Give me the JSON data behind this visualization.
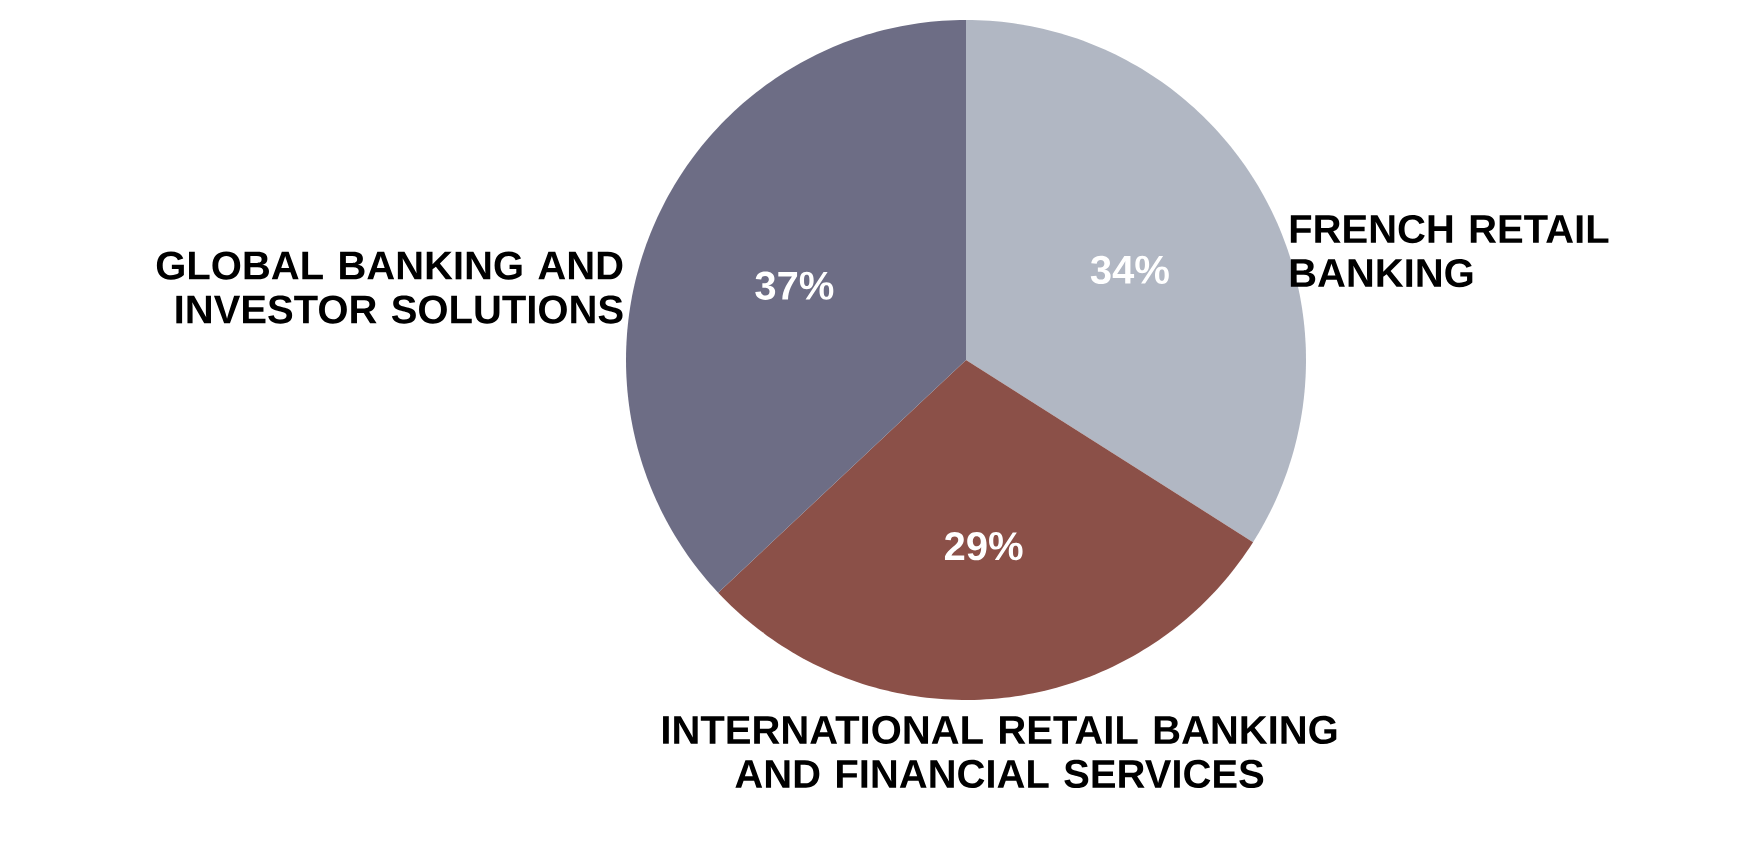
{
  "chart_data": {
    "type": "pie",
    "categories": [
      "FRENCH RETAIL BANKING",
      "INTERNATIONAL RETAIL BANKING AND FINANCIAL SERVICES",
      "GLOBAL BANKING AND INVESTOR SOLUTIONS"
    ],
    "values": [
      34,
      29,
      37
    ],
    "value_labels": [
      "34%",
      "29%",
      "37%"
    ],
    "colors": [
      "#b1b7c3",
      "#8b5048",
      "#6d6d85"
    ]
  }
}
